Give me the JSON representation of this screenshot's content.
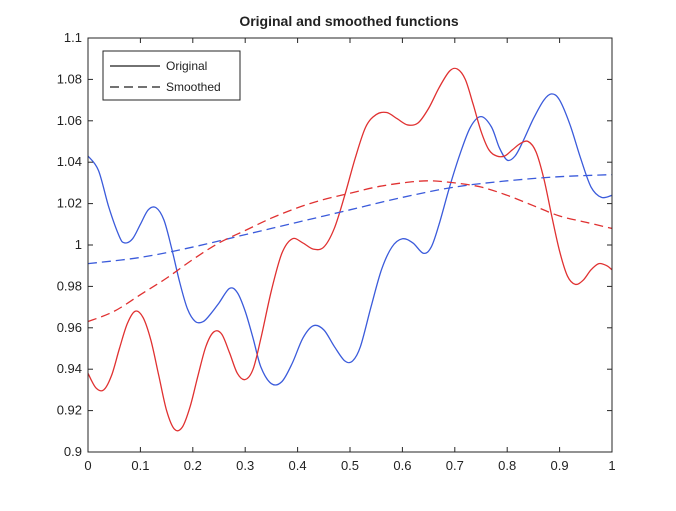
{
  "chart_data": {
    "type": "line",
    "title": "Original and smoothed functions",
    "xlabel": "",
    "ylabel": "",
    "xlim": [
      0,
      1
    ],
    "ylim": [
      0.9,
      1.1
    ],
    "x_ticks": [
      0,
      0.1,
      0.2,
      0.3,
      0.4,
      0.5,
      0.6,
      0.7,
      0.8,
      0.9,
      1
    ],
    "x_tick_labels": [
      "0",
      "0.1",
      "0.2",
      "0.3",
      "0.4",
      "0.5",
      "0.6",
      "0.7",
      "0.8",
      "0.9",
      "1"
    ],
    "y_ticks": [
      0.9,
      0.92,
      0.94,
      0.96,
      0.98,
      1.0,
      1.02,
      1.04,
      1.06,
      1.08,
      1.1
    ],
    "y_tick_labels": [
      "0.9",
      "0.92",
      "0.94",
      "0.96",
      "0.98",
      "1",
      "1.02",
      "1.04",
      "1.06",
      "1.08",
      "1.1"
    ],
    "grid": false,
    "legend": {
      "placement": "top-left",
      "entries": [
        {
          "label": "Original",
          "style": "solid"
        },
        {
          "label": "Smoothed",
          "style": "dashed"
        }
      ]
    },
    "series": [
      {
        "color": "#3b5bdb",
        "style": "solid",
        "role": "original",
        "points": [
          [
            0,
            1.043
          ],
          [
            0.02,
            1.036
          ],
          [
            0.04,
            1.018
          ],
          [
            0.06,
            1.004
          ],
          [
            0.07,
            1.001
          ],
          [
            0.085,
            1.003
          ],
          [
            0.1,
            1.01
          ],
          [
            0.115,
            1.017
          ],
          [
            0.13,
            1.018
          ],
          [
            0.145,
            1.012
          ],
          [
            0.16,
            0.998
          ],
          [
            0.175,
            0.982
          ],
          [
            0.19,
            0.969
          ],
          [
            0.205,
            0.963
          ],
          [
            0.22,
            0.963
          ],
          [
            0.235,
            0.967
          ],
          [
            0.25,
            0.972
          ],
          [
            0.27,
            0.979
          ],
          [
            0.285,
            0.977
          ],
          [
            0.3,
            0.968
          ],
          [
            0.315,
            0.955
          ],
          [
            0.33,
            0.941
          ],
          [
            0.35,
            0.933
          ],
          [
            0.37,
            0.934
          ],
          [
            0.39,
            0.943
          ],
          [
            0.41,
            0.955
          ],
          [
            0.43,
            0.961
          ],
          [
            0.45,
            0.959
          ],
          [
            0.47,
            0.951
          ],
          [
            0.49,
            0.944
          ],
          [
            0.505,
            0.944
          ],
          [
            0.52,
            0.951
          ],
          [
            0.54,
            0.97
          ],
          [
            0.56,
            0.988
          ],
          [
            0.58,
            0.999
          ],
          [
            0.6,
            1.003
          ],
          [
            0.62,
            1.001
          ],
          [
            0.64,
            0.996
          ],
          [
            0.655,
            0.999
          ],
          [
            0.67,
            1.01
          ],
          [
            0.69,
            1.028
          ],
          [
            0.71,
            1.044
          ],
          [
            0.73,
            1.057
          ],
          [
            0.75,
            1.062
          ],
          [
            0.77,
            1.057
          ],
          [
            0.785,
            1.047
          ],
          [
            0.8,
            1.041
          ],
          [
            0.815,
            1.043
          ],
          [
            0.83,
            1.05
          ],
          [
            0.85,
            1.061
          ],
          [
            0.87,
            1.07
          ],
          [
            0.885,
            1.073
          ],
          [
            0.9,
            1.07
          ],
          [
            0.92,
            1.058
          ],
          [
            0.94,
            1.042
          ],
          [
            0.96,
            1.028
          ],
          [
            0.98,
            1.023
          ],
          [
            1,
            1.024
          ]
        ]
      },
      {
        "color": "#e03131",
        "style": "solid",
        "role": "original",
        "points": [
          [
            0,
            0.938
          ],
          [
            0.015,
            0.931
          ],
          [
            0.03,
            0.93
          ],
          [
            0.045,
            0.937
          ],
          [
            0.06,
            0.95
          ],
          [
            0.075,
            0.962
          ],
          [
            0.09,
            0.968
          ],
          [
            0.105,
            0.965
          ],
          [
            0.12,
            0.954
          ],
          [
            0.135,
            0.937
          ],
          [
            0.15,
            0.92
          ],
          [
            0.165,
            0.911
          ],
          [
            0.18,
            0.912
          ],
          [
            0.195,
            0.922
          ],
          [
            0.21,
            0.937
          ],
          [
            0.225,
            0.951
          ],
          [
            0.24,
            0.958
          ],
          [
            0.255,
            0.957
          ],
          [
            0.27,
            0.948
          ],
          [
            0.285,
            0.938
          ],
          [
            0.3,
            0.935
          ],
          [
            0.315,
            0.94
          ],
          [
            0.33,
            0.955
          ],
          [
            0.35,
            0.978
          ],
          [
            0.37,
            0.996
          ],
          [
            0.39,
            1.003
          ],
          [
            0.41,
            1.001
          ],
          [
            0.43,
            0.998
          ],
          [
            0.45,
            0.999
          ],
          [
            0.47,
            1.008
          ],
          [
            0.49,
            1.024
          ],
          [
            0.51,
            1.042
          ],
          [
            0.53,
            1.057
          ],
          [
            0.55,
            1.063
          ],
          [
            0.57,
            1.064
          ],
          [
            0.59,
            1.061
          ],
          [
            0.61,
            1.058
          ],
          [
            0.63,
            1.059
          ],
          [
            0.65,
            1.066
          ],
          [
            0.67,
            1.076
          ],
          [
            0.69,
            1.084
          ],
          [
            0.705,
            1.085
          ],
          [
            0.72,
            1.08
          ],
          [
            0.735,
            1.068
          ],
          [
            0.75,
            1.055
          ],
          [
            0.765,
            1.046
          ],
          [
            0.78,
            1.043
          ],
          [
            0.795,
            1.043
          ],
          [
            0.81,
            1.046
          ],
          [
            0.825,
            1.049
          ],
          [
            0.84,
            1.05
          ],
          [
            0.855,
            1.045
          ],
          [
            0.87,
            1.032
          ],
          [
            0.885,
            1.014
          ],
          [
            0.9,
            0.997
          ],
          [
            0.915,
            0.985
          ],
          [
            0.93,
            0.981
          ],
          [
            0.945,
            0.983
          ],
          [
            0.96,
            0.988
          ],
          [
            0.975,
            0.991
          ],
          [
            0.99,
            0.99
          ],
          [
            1,
            0.988
          ]
        ]
      },
      {
        "color": "#3b5bdb",
        "style": "dashed",
        "role": "smoothed",
        "points": [
          [
            0,
            0.991
          ],
          [
            0.1,
            0.994
          ],
          [
            0.2,
            0.999
          ],
          [
            0.3,
            1.005
          ],
          [
            0.4,
            1.011
          ],
          [
            0.5,
            1.017
          ],
          [
            0.6,
            1.023
          ],
          [
            0.7,
            1.028
          ],
          [
            0.8,
            1.031
          ],
          [
            0.9,
            1.033
          ],
          [
            1,
            1.034
          ]
        ]
      },
      {
        "color": "#e03131",
        "style": "dashed",
        "role": "smoothed",
        "points": [
          [
            0,
            0.963
          ],
          [
            0.05,
            0.968
          ],
          [
            0.1,
            0.976
          ],
          [
            0.15,
            0.984
          ],
          [
            0.2,
            0.993
          ],
          [
            0.25,
            1.001
          ],
          [
            0.3,
            1.007
          ],
          [
            0.35,
            1.013
          ],
          [
            0.4,
            1.018
          ],
          [
            0.45,
            1.022
          ],
          [
            0.5,
            1.025
          ],
          [
            0.55,
            1.028
          ],
          [
            0.6,
            1.03
          ],
          [
            0.65,
            1.031
          ],
          [
            0.7,
            1.03
          ],
          [
            0.75,
            1.028
          ],
          [
            0.8,
            1.024
          ],
          [
            0.85,
            1.019
          ],
          [
            0.9,
            1.014
          ],
          [
            0.95,
            1.011
          ],
          [
            1,
            1.008
          ]
        ]
      }
    ]
  }
}
